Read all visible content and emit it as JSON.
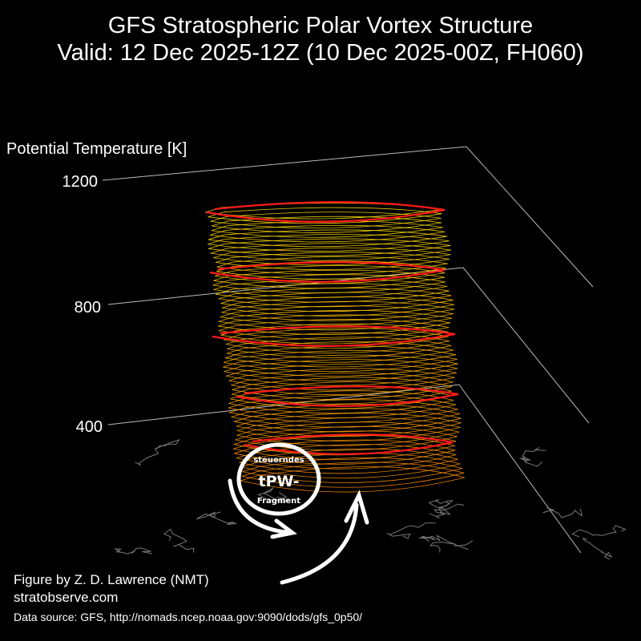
{
  "title": {
    "line1": "GFS Stratospheric Polar Vortex Structure",
    "line2": "Valid: 12 Dec 2025-12Z  (10 Dec 2025-00Z, FH060)"
  },
  "chart_data": {
    "type": "3d-isosurface",
    "title": "GFS Stratospheric Polar Vortex Structure",
    "zlabel": "Potential Temperature [K]",
    "z_ticks": [
      "400",
      "800",
      "1200"
    ],
    "colors": {
      "low": "#ff8c00",
      "high": "#ffe000",
      "contours": "#ff1a1a",
      "axes": "#bbbbbb",
      "coastlines": "#777777"
    }
  },
  "annotation": {
    "top": "steuerndes",
    "middle": "tPW-",
    "bottom": "Fragment"
  },
  "credits": {
    "author": "Figure by Z. D. Lawrence (NMT)",
    "site": "stratobserve.com",
    "source": "Data source: GFS, http://nomads.ncep.noaa.gov:9090/dods/gfs_0p50/"
  }
}
